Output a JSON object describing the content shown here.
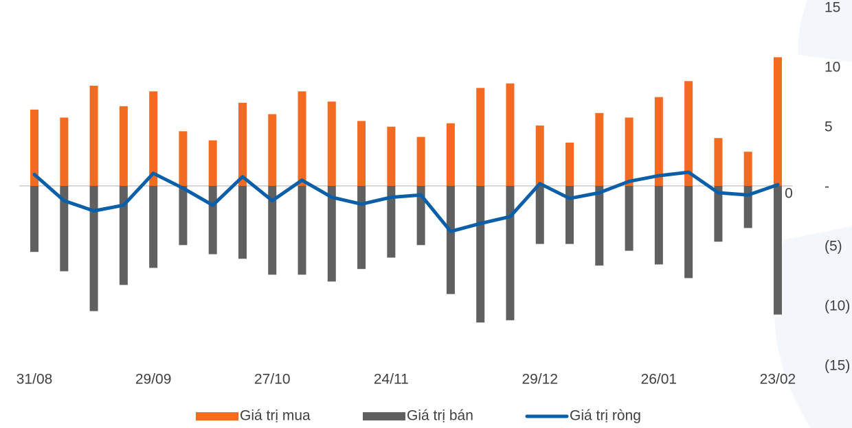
{
  "chart_data": {
    "type": "bar_line",
    "categories": [
      "31/08",
      null,
      null,
      null,
      "29/09",
      null,
      null,
      null,
      "27/10",
      null,
      null,
      null,
      "24/11",
      null,
      null,
      null,
      null,
      "29/12",
      null,
      null,
      null,
      "26/01",
      null,
      null,
      null,
      "23/02"
    ],
    "series": [
      {
        "name": "Giá trị mua",
        "type": "bar",
        "color": "#f26b21",
        "values": [
          6.7,
          6.0,
          8.8,
          7.0,
          8.3,
          4.8,
          4.0,
          7.3,
          6.3,
          8.3,
          7.4,
          5.7,
          5.2,
          4.3,
          5.5,
          8.6,
          9.0,
          5.3,
          3.8,
          6.4,
          6.0,
          7.8,
          9.2,
          4.2,
          3.0,
          11.3
        ]
      },
      {
        "name": "Giá trị bán",
        "type": "bar",
        "color": "#606060",
        "values": [
          -5.8,
          -7.5,
          -11.0,
          -8.7,
          -7.2,
          -5.2,
          -6.0,
          -6.4,
          -7.8,
          -7.8,
          -8.4,
          -7.3,
          -6.3,
          -5.2,
          -9.5,
          -12.0,
          -11.8,
          -5.1,
          -5.1,
          -7.0,
          -5.7,
          -6.9,
          -8.1,
          -4.9,
          -3.7,
          -11.3
        ]
      },
      {
        "name": "Giá trị ròng",
        "type": "line",
        "color": "#0a5fa8",
        "values": [
          1.0,
          -1.3,
          -2.2,
          -1.7,
          1.1,
          -0.2,
          -1.7,
          0.8,
          -1.3,
          0.5,
          -1.0,
          -1.6,
          -1.0,
          -0.8,
          -4.0,
          -3.3,
          -2.7,
          0.2,
          -1.1,
          -0.6,
          0.4,
          0.9,
          1.2,
          -0.6,
          -0.8,
          0.1
        ]
      }
    ],
    "ylim": [
      -15,
      15
    ],
    "yticks": [
      15,
      10,
      5,
      {
        "value": 0,
        "label": "-"
      },
      {
        "value": -5,
        "label": "(5)"
      },
      {
        "value": -10,
        "label": "(10)"
      },
      {
        "value": -15,
        "label": "(15)"
      }
    ],
    "annotation": "0",
    "legend": "bottom"
  }
}
